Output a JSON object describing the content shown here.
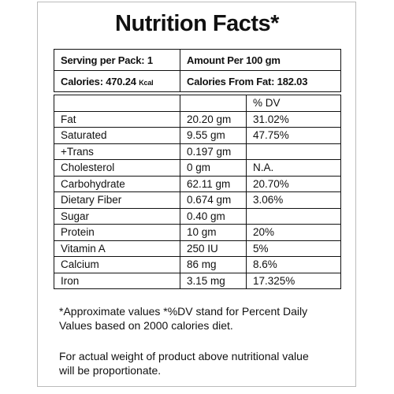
{
  "header": {
    "title": "Nutrition Facts*"
  },
  "summary": {
    "serving": "Serving per Pack: 1",
    "amount": "Amount Per 100 gm",
    "calories": "Calories: 470.24",
    "calories_unit": "Kcal",
    "calories_from_fat": "Calories From Fat: 182.03"
  },
  "table": {
    "dv_header": "% DV",
    "rows": [
      [
        "Fat",
        "20.20 gm",
        "31.02%"
      ],
      [
        "Saturated",
        "9.55 gm",
        "47.75%"
      ],
      [
        "+Trans",
        "0.197 gm"
      ],
      [
        "Cholesterol",
        "0 gm",
        "N.A."
      ],
      [
        "Carbohydrate",
        "62.11 gm",
        "20.70%"
      ],
      [
        "Dietary Fiber",
        "0.674 gm",
        "3.06%"
      ],
      [
        "Sugar",
        "0.40 gm"
      ],
      [
        "Protein",
        "10 gm",
        "20%"
      ],
      [
        "Vitamin A",
        "250 IU",
        "5%"
      ],
      [
        "Calcium",
        "86 mg",
        "8.6%"
      ],
      [
        "Iron",
        "3.15 mg",
        "17.325%"
      ]
    ]
  },
  "footnotes": {
    "lines": [
      "*Approximate values *%DV stand for Percent Daily",
      "Values based on 2000 calories diet."
    ]
  },
  "note": {
    "lines": [
      "For actual weight of product above nutritional value",
      "will be proportionate."
    ]
  }
}
